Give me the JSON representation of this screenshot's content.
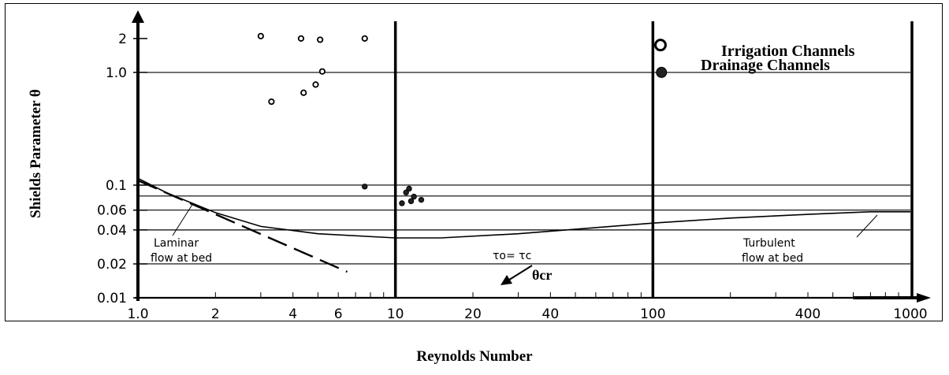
{
  "chart_data": {
    "type": "scatter",
    "ylabel": "Shields Parameter θ",
    "xlabel": "Reynolds Number",
    "x_scale": "log",
    "y_scale": "log",
    "xlim": [
      1,
      1000
    ],
    "ylim": [
      0.01,
      2.5
    ],
    "x_ticks": [
      {
        "v": 1,
        "label": "1.0"
      },
      {
        "v": 2,
        "label": "2"
      },
      {
        "v": 4,
        "label": "4"
      },
      {
        "v": 6,
        "label": "6"
      },
      {
        "v": 10,
        "label": "10"
      },
      {
        "v": 20,
        "label": "20"
      },
      {
        "v": 40,
        "label": "40"
      },
      {
        "v": 100,
        "label": "100"
      },
      {
        "v": 400,
        "label": "400"
      },
      {
        "v": 1000,
        "label": "1000"
      }
    ],
    "y_ticks": [
      {
        "v": 0.01,
        "label": "0.01"
      },
      {
        "v": 0.02,
        "label": "0.02"
      },
      {
        "v": 0.04,
        "label": "0.04"
      },
      {
        "v": 0.06,
        "label": "0.06"
      },
      {
        "v": 0.1,
        "label": "0.1"
      },
      {
        "v": 1.0,
        "label": "1.0"
      },
      {
        "v": 2,
        "label": "2"
      }
    ],
    "h_gridlines": [
      0.02,
      0.04,
      0.06,
      0.08,
      0.1,
      1.0
    ],
    "v_gridlines": [
      10,
      100
    ],
    "series": [
      {
        "name": "Irrigation Channels",
        "marker": "open-circle",
        "points": [
          [
            3.0,
            2.1
          ],
          [
            4.3,
            2.0
          ],
          [
            5.1,
            1.95
          ],
          [
            7.6,
            2.0
          ],
          [
            5.2,
            1.02
          ],
          [
            3.3,
            0.55
          ],
          [
            4.4,
            0.66
          ],
          [
            4.9,
            0.78
          ],
          [
            107,
            1.75
          ]
        ]
      },
      {
        "name": "Drainage Channels",
        "marker": "filled-circle",
        "points": [
          [
            7.6,
            0.097
          ],
          [
            11.3,
            0.093
          ],
          [
            11.0,
            0.086
          ],
          [
            11.8,
            0.079
          ],
          [
            11.5,
            0.072
          ],
          [
            12.6,
            0.074
          ],
          [
            10.6,
            0.069
          ],
          [
            108,
            1.0
          ]
        ]
      }
    ],
    "critical_curve": {
      "label": "τo= τc",
      "points": [
        [
          1,
          0.115
        ],
        [
          1.3,
          0.085
        ],
        [
          2,
          0.057
        ],
        [
          3,
          0.043
        ],
        [
          5,
          0.037
        ],
        [
          10,
          0.034
        ],
        [
          15,
          0.034
        ],
        [
          30,
          0.037
        ],
        [
          60,
          0.042
        ],
        [
          100,
          0.046
        ],
        [
          200,
          0.051
        ],
        [
          400,
          0.055
        ],
        [
          700,
          0.058
        ],
        [
          1000,
          0.058
        ]
      ]
    },
    "laminar_line": [
      [
        1.0,
        0.11
      ],
      [
        6.5,
        0.017
      ]
    ],
    "annotations": {
      "laminar_1": "Laminar",
      "laminar_2": "flow at bed",
      "turbulent_1": "Turbulent",
      "turbulent_2": "flow at bed",
      "theta_cr": "θcr"
    }
  }
}
